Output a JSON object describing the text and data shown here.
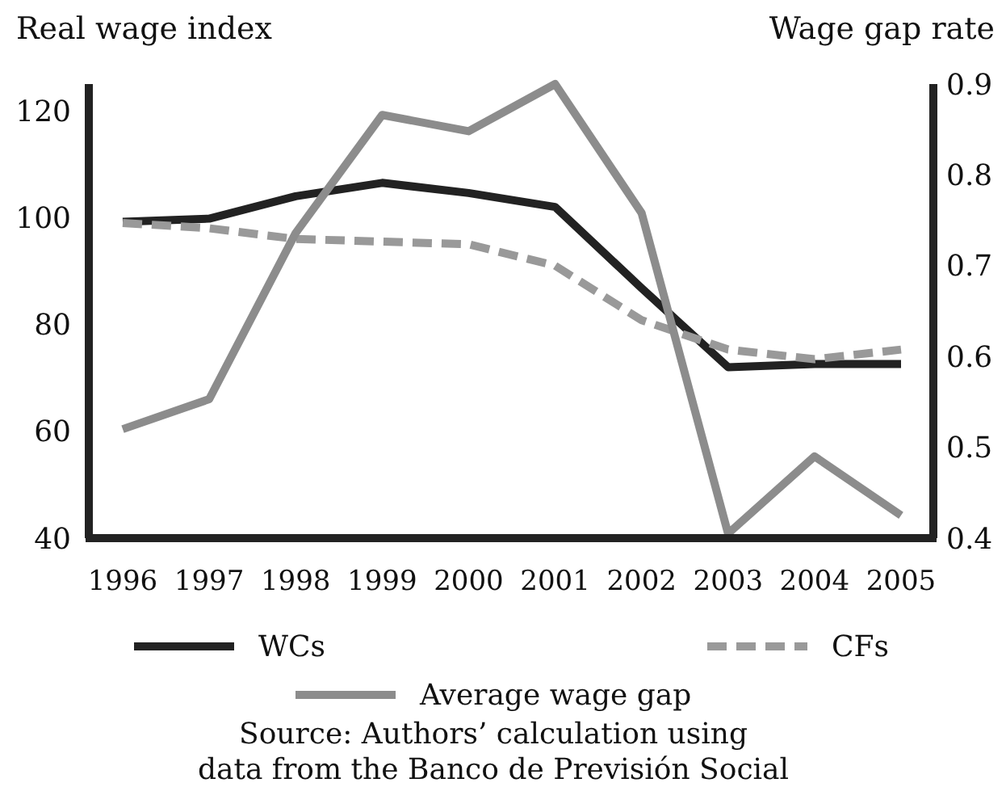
{
  "chart_data": {
    "type": "line",
    "ylabel": "Real wage index",
    "y2label": "Wage gap rate",
    "categories": [
      "1996",
      "1997",
      "1998",
      "1999",
      "2000",
      "2001",
      "2002",
      "2003",
      "2004",
      "2005"
    ],
    "series": [
      {
        "name": "WCs",
        "color": "#222222",
        "line_style": "solid",
        "values": [
          99.2,
          99.8,
          104,
          106.5,
          104.6,
          102,
          86.8,
          72,
          72.6,
          72.6
        ]
      },
      {
        "name": "CFs",
        "color": "#999999",
        "line_style": "dashed",
        "values": [
          99,
          98,
          96,
          95.5,
          95,
          91,
          80.8,
          75.3,
          73.5,
          75.3
        ]
      },
      {
        "name": "Average wage gap",
        "color": "#8c8c8c",
        "line_style": "solid",
        "axis": "y2",
        "values": [
          0.52,
          0.553,
          0.736,
          0.866,
          0.848,
          0.9,
          0.758,
          0.405,
          0.49,
          0.425
        ]
      }
    ],
    "ylim": [
      40,
      125
    ],
    "yticks": [
      40,
      60,
      80,
      100,
      120
    ],
    "y2lim": [
      0.4,
      0.9
    ],
    "y2ticks": [
      0.4,
      0.5,
      0.6,
      0.7,
      0.8,
      0.9
    ],
    "grid": false,
    "legend": "bottom",
    "marker": "none",
    "annotations": [
      "Source: Authors’ calculation using data from the Banco de Previsión Social"
    ]
  }
}
